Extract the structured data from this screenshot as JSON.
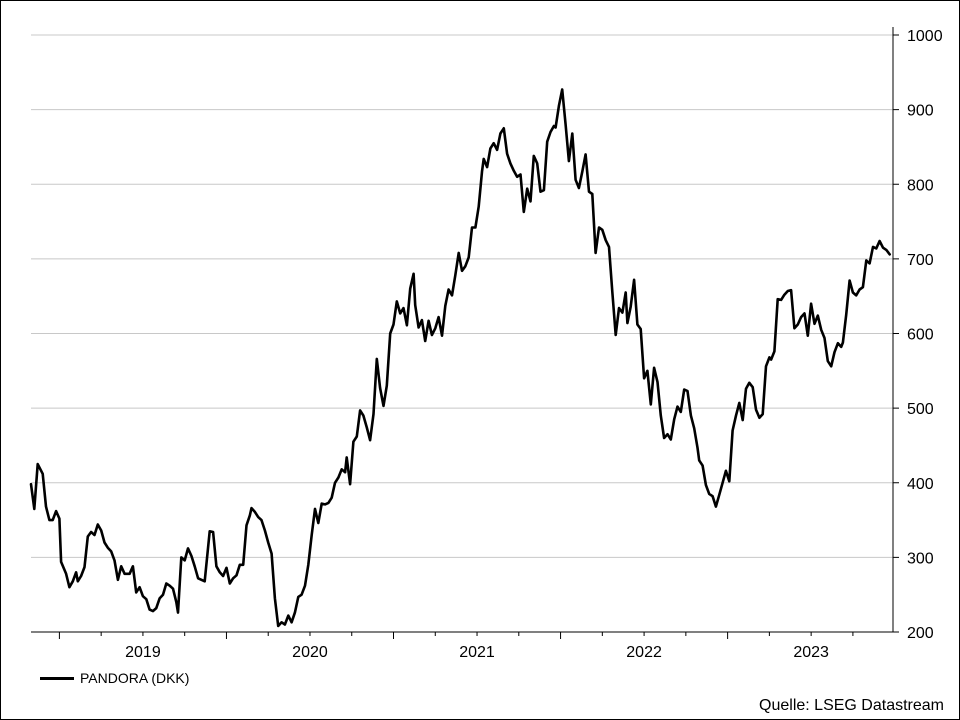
{
  "chart_data": {
    "type": "line",
    "y_axis_side": "right",
    "ylim": [
      200,
      1000
    ],
    "yticks": [
      200,
      300,
      400,
      500,
      600,
      700,
      800,
      900,
      1000
    ],
    "xlim": [
      2018.33,
      2023.49
    ],
    "year_labels": [
      {
        "label": "2019",
        "at": 2019.0
      },
      {
        "label": "2020",
        "at": 2020.0
      },
      {
        "label": "2021",
        "at": 2021.0
      },
      {
        "label": "2022",
        "at": 2022.0
      },
      {
        "label": "2023",
        "at": 2023.0
      }
    ],
    "grid": "horizontal",
    "legend_position": "bottom-left",
    "series": [
      {
        "name": "PANDORA (DKK)",
        "color": "#000000",
        "points": [
          [
            2018.33,
            398
          ],
          [
            2018.35,
            365
          ],
          [
            2018.37,
            425
          ],
          [
            2018.4,
            412
          ],
          [
            2018.42,
            368
          ],
          [
            2018.44,
            350
          ],
          [
            2018.46,
            350
          ],
          [
            2018.48,
            362
          ],
          [
            2018.5,
            352
          ],
          [
            2018.51,
            294
          ],
          [
            2018.54,
            278
          ],
          [
            2018.56,
            260
          ],
          [
            2018.58,
            268
          ],
          [
            2018.6,
            280
          ],
          [
            2018.61,
            268
          ],
          [
            2018.63,
            275
          ],
          [
            2018.65,
            287
          ],
          [
            2018.67,
            328
          ],
          [
            2018.69,
            334
          ],
          [
            2018.71,
            330
          ],
          [
            2018.73,
            344
          ],
          [
            2018.75,
            336
          ],
          [
            2018.77,
            320
          ],
          [
            2018.79,
            313
          ],
          [
            2018.81,
            308
          ],
          [
            2018.83,
            296
          ],
          [
            2018.85,
            270
          ],
          [
            2018.87,
            288
          ],
          [
            2018.89,
            278
          ],
          [
            2018.92,
            278
          ],
          [
            2018.94,
            288
          ],
          [
            2018.96,
            253
          ],
          [
            2018.98,
            260
          ],
          [
            2019.0,
            248
          ],
          [
            2019.02,
            244
          ],
          [
            2019.04,
            230
          ],
          [
            2019.06,
            228
          ],
          [
            2019.08,
            232
          ],
          [
            2019.1,
            245
          ],
          [
            2019.12,
            250
          ],
          [
            2019.14,
            265
          ],
          [
            2019.16,
            262
          ],
          [
            2019.18,
            258
          ],
          [
            2019.2,
            240
          ],
          [
            2019.21,
            226
          ],
          [
            2019.23,
            300
          ],
          [
            2019.25,
            296
          ],
          [
            2019.27,
            312
          ],
          [
            2019.29,
            302
          ],
          [
            2019.31,
            288
          ],
          [
            2019.33,
            272
          ],
          [
            2019.35,
            270
          ],
          [
            2019.37,
            268
          ],
          [
            2019.4,
            335
          ],
          [
            2019.42,
            334
          ],
          [
            2019.44,
            288
          ],
          [
            2019.46,
            280
          ],
          [
            2019.48,
            275
          ],
          [
            2019.5,
            286
          ],
          [
            2019.52,
            265
          ],
          [
            2019.54,
            272
          ],
          [
            2019.56,
            276
          ],
          [
            2019.58,
            290
          ],
          [
            2019.6,
            290
          ],
          [
            2019.62,
            343
          ],
          [
            2019.64,
            356
          ],
          [
            2019.65,
            366
          ],
          [
            2019.67,
            361
          ],
          [
            2019.69,
            354
          ],
          [
            2019.71,
            350
          ],
          [
            2019.73,
            336
          ],
          [
            2019.75,
            320
          ],
          [
            2019.77,
            305
          ],
          [
            2019.79,
            245
          ],
          [
            2019.81,
            208
          ],
          [
            2019.83,
            213
          ],
          [
            2019.85,
            210
          ],
          [
            2019.87,
            222
          ],
          [
            2019.89,
            213
          ],
          [
            2019.91,
            226
          ],
          [
            2019.93,
            247
          ],
          [
            2019.95,
            250
          ],
          [
            2019.97,
            262
          ],
          [
            2019.99,
            290
          ],
          [
            2020.01,
            330
          ],
          [
            2020.03,
            365
          ],
          [
            2020.05,
            346
          ],
          [
            2020.07,
            372
          ],
          [
            2020.09,
            371
          ],
          [
            2020.11,
            373
          ],
          [
            2020.13,
            380
          ],
          [
            2020.15,
            400
          ],
          [
            2020.17,
            407
          ],
          [
            2020.19,
            418
          ],
          [
            2020.21,
            414
          ],
          [
            2020.22,
            434
          ],
          [
            2020.24,
            398
          ],
          [
            2020.26,
            455
          ],
          [
            2020.28,
            462
          ],
          [
            2020.3,
            497
          ],
          [
            2020.32,
            490
          ],
          [
            2020.34,
            474
          ],
          [
            2020.36,
            457
          ],
          [
            2020.38,
            492
          ],
          [
            2020.4,
            566
          ],
          [
            2020.42,
            527
          ],
          [
            2020.44,
            503
          ],
          [
            2020.46,
            530
          ],
          [
            2020.48,
            600
          ],
          [
            2020.5,
            612
          ],
          [
            2020.52,
            643
          ],
          [
            2020.54,
            627
          ],
          [
            2020.56,
            634
          ],
          [
            2020.58,
            611
          ],
          [
            2020.6,
            660
          ],
          [
            2020.62,
            680
          ],
          [
            2020.63,
            638
          ],
          [
            2020.65,
            608
          ],
          [
            2020.67,
            618
          ],
          [
            2020.69,
            590
          ],
          [
            2020.71,
            617
          ],
          [
            2020.73,
            598
          ],
          [
            2020.75,
            607
          ],
          [
            2020.77,
            622
          ],
          [
            2020.79,
            597
          ],
          [
            2020.81,
            637
          ],
          [
            2020.83,
            659
          ],
          [
            2020.85,
            651
          ],
          [
            2020.87,
            678
          ],
          [
            2020.89,
            708
          ],
          [
            2020.91,
            684
          ],
          [
            2020.93,
            690
          ],
          [
            2020.95,
            702
          ],
          [
            2020.97,
            742
          ],
          [
            2020.99,
            742
          ],
          [
            2021.01,
            770
          ],
          [
            2021.03,
            817
          ],
          [
            2021.04,
            834
          ],
          [
            2021.06,
            823
          ],
          [
            2021.08,
            848
          ],
          [
            2021.1,
            855
          ],
          [
            2021.12,
            846
          ],
          [
            2021.14,
            868
          ],
          [
            2021.16,
            875
          ],
          [
            2021.18,
            841
          ],
          [
            2021.2,
            828
          ],
          [
            2021.22,
            818
          ],
          [
            2021.24,
            810
          ],
          [
            2021.26,
            813
          ],
          [
            2021.28,
            763
          ],
          [
            2021.3,
            794
          ],
          [
            2021.32,
            777
          ],
          [
            2021.34,
            838
          ],
          [
            2021.36,
            828
          ],
          [
            2021.38,
            790
          ],
          [
            2021.4,
            792
          ],
          [
            2021.42,
            857
          ],
          [
            2021.44,
            870
          ],
          [
            2021.46,
            878
          ],
          [
            2021.47,
            876
          ],
          [
            2021.49,
            905
          ],
          [
            2021.51,
            927
          ],
          [
            2021.53,
            880
          ],
          [
            2021.55,
            831
          ],
          [
            2021.57,
            868
          ],
          [
            2021.59,
            806
          ],
          [
            2021.61,
            795
          ],
          [
            2021.63,
            817
          ],
          [
            2021.65,
            840
          ],
          [
            2021.67,
            790
          ],
          [
            2021.69,
            787
          ],
          [
            2021.71,
            708
          ],
          [
            2021.73,
            742
          ],
          [
            2021.75,
            739
          ],
          [
            2021.77,
            725
          ],
          [
            2021.79,
            716
          ],
          [
            2021.81,
            656
          ],
          [
            2021.83,
            598
          ],
          [
            2021.85,
            634
          ],
          [
            2021.87,
            628
          ],
          [
            2021.89,
            655
          ],
          [
            2021.9,
            614
          ],
          [
            2021.92,
            636
          ],
          [
            2021.94,
            672
          ],
          [
            2021.96,
            612
          ],
          [
            2021.98,
            606
          ],
          [
            2022.0,
            540
          ],
          [
            2022.02,
            550
          ],
          [
            2022.04,
            505
          ],
          [
            2022.06,
            554
          ],
          [
            2022.08,
            535
          ],
          [
            2022.1,
            490
          ],
          [
            2022.12,
            460
          ],
          [
            2022.14,
            465
          ],
          [
            2022.16,
            458
          ],
          [
            2022.18,
            485
          ],
          [
            2022.2,
            502
          ],
          [
            2022.22,
            495
          ],
          [
            2022.24,
            525
          ],
          [
            2022.26,
            523
          ],
          [
            2022.28,
            490
          ],
          [
            2022.3,
            473
          ],
          [
            2022.32,
            447
          ],
          [
            2022.33,
            430
          ],
          [
            2022.35,
            423
          ],
          [
            2022.37,
            397
          ],
          [
            2022.39,
            385
          ],
          [
            2022.41,
            382
          ],
          [
            2022.43,
            368
          ],
          [
            2022.45,
            384
          ],
          [
            2022.47,
            400
          ],
          [
            2022.49,
            416
          ],
          [
            2022.51,
            402
          ],
          [
            2022.53,
            470
          ],
          [
            2022.55,
            490
          ],
          [
            2022.57,
            507
          ],
          [
            2022.59,
            484
          ],
          [
            2022.61,
            526
          ],
          [
            2022.63,
            534
          ],
          [
            2022.65,
            528
          ],
          [
            2022.67,
            498
          ],
          [
            2022.69,
            487
          ],
          [
            2022.71,
            492
          ],
          [
            2022.73,
            556
          ],
          [
            2022.75,
            568
          ],
          [
            2022.76,
            565
          ],
          [
            2022.78,
            576
          ],
          [
            2022.8,
            646
          ],
          [
            2022.82,
            645
          ],
          [
            2022.84,
            652
          ],
          [
            2022.86,
            657
          ],
          [
            2022.88,
            658
          ],
          [
            2022.9,
            607
          ],
          [
            2022.92,
            612
          ],
          [
            2022.94,
            622
          ],
          [
            2022.96,
            627
          ],
          [
            2022.98,
            597
          ],
          [
            2023.0,
            640
          ],
          [
            2023.02,
            613
          ],
          [
            2023.04,
            624
          ],
          [
            2023.06,
            605
          ],
          [
            2023.08,
            594
          ],
          [
            2023.1,
            563
          ],
          [
            2023.12,
            556
          ],
          [
            2023.14,
            575
          ],
          [
            2023.16,
            587
          ],
          [
            2023.18,
            582
          ],
          [
            2023.19,
            588
          ],
          [
            2023.21,
            625
          ],
          [
            2023.23,
            671
          ],
          [
            2023.25,
            655
          ],
          [
            2023.27,
            651
          ],
          [
            2023.29,
            659
          ],
          [
            2023.31,
            662
          ],
          [
            2023.33,
            698
          ],
          [
            2023.35,
            694
          ],
          [
            2023.37,
            716
          ],
          [
            2023.39,
            714
          ],
          [
            2023.41,
            724
          ],
          [
            2023.43,
            715
          ],
          [
            2023.45,
            712
          ],
          [
            2023.47,
            706
          ]
        ]
      }
    ]
  },
  "source_text": "Quelle: LSEG Datastream"
}
